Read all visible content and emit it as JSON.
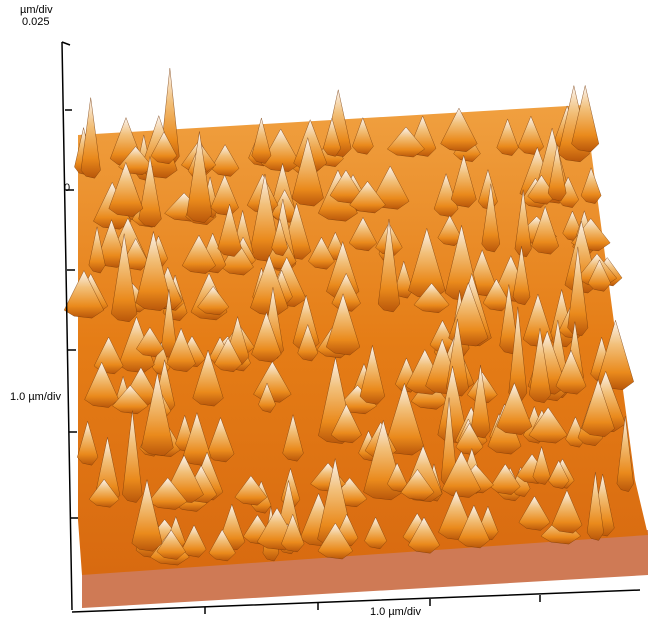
{
  "axes": {
    "z_unit": "µm/div",
    "z_max": "0.025",
    "z_zero": "0",
    "y_scale": "1.0 µm/div",
    "x_scale": "1.0 µm/div"
  }
}
